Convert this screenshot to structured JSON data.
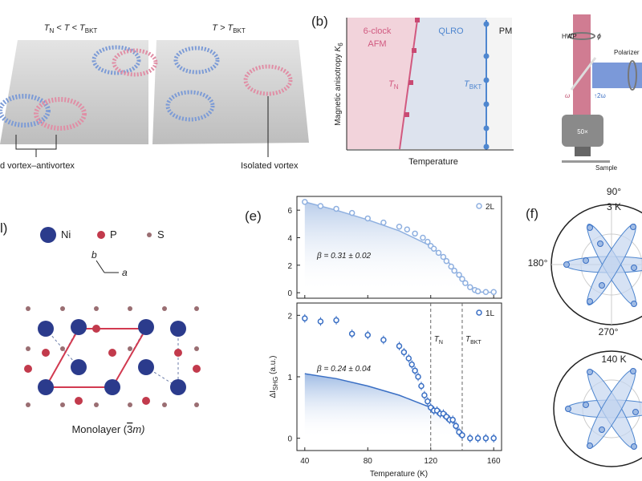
{
  "panel_a": {
    "label_left": [
      "T",
      "N",
      " < T < T",
      "BKT"
    ],
    "label_right": [
      "T > T",
      "BKT"
    ],
    "caption_left": "d vortex–antivortex",
    "caption_right": "Isolated vortex"
  },
  "panel_b": {
    "label": "(b)",
    "afm": [
      "6-clock",
      "AFM"
    ],
    "qlro": "QLRO",
    "pm": "PM",
    "tn": [
      "T",
      "N"
    ],
    "tbkt": [
      "T",
      "BKT"
    ],
    "y_label": [
      "Magnetic anisotropy ",
      "K",
      "6"
    ],
    "x_label": "Temperature"
  },
  "panel_c": {
    "hwp": "HWP",
    "phi": "ϕ",
    "polarizer": "Polarizer",
    "omega": "ω",
    "two_omega": "↑2ω",
    "objective": "50×",
    "sample": "Sample"
  },
  "panel_d": {
    "label": "l)",
    "legend": [
      "Ni",
      "P",
      "S"
    ],
    "axis_b": "b",
    "axis_a": "a",
    "caption": [
      "Monolayer (",
      "3",
      "m)"
    ]
  },
  "panel_e": {
    "label": "(e)",
    "y_label": [
      "ΔI",
      "SHG",
      " (a.u.)"
    ],
    "x_label": "Temperature (K)"
  },
  "panel_f": {
    "label": "(f)",
    "top": {
      "angle_top": "90°",
      "temp": "3 K",
      "angle_left": "180°",
      "angle_bottom": "270°"
    },
    "bottom": {
      "temp": "140 K"
    }
  },
  "chart_data": [
    {
      "type": "scatter",
      "show_xtick_labels": false,
      "series": [
        {
          "name": "2L",
          "color": "#8fb0e0",
          "x": [
            40,
            50,
            60,
            70,
            80,
            90,
            100,
            105,
            110,
            115,
            118,
            120,
            122,
            125,
            128,
            130,
            133,
            135,
            138,
            140,
            142,
            145,
            148,
            150,
            155,
            160
          ],
          "values": [
            6.6,
            6.3,
            6.1,
            5.8,
            5.4,
            5.1,
            4.8,
            4.6,
            4.3,
            4.0,
            3.7,
            3.4,
            3.2,
            2.9,
            2.6,
            2.3,
            1.9,
            1.6,
            1.3,
            1.0,
            0.7,
            0.4,
            0.2,
            0.1,
            0.05,
            0.05
          ],
          "errors": [
            0.15,
            0.15,
            0.15,
            0.15,
            0.15,
            0.15,
            0.15,
            0.15,
            0.15,
            0.15,
            0.15,
            0.15,
            0.15,
            0.15,
            0.15,
            0.15,
            0.15,
            0.15,
            0.15,
            0.15,
            0.15,
            0.15,
            0.15,
            0.15,
            0.15,
            0.15
          ]
        }
      ],
      "fit": {
        "x": [
          40,
          60,
          80,
          100,
          120,
          130,
          140,
          145,
          150,
          160
        ],
        "values": [
          6.6,
          6.0,
          5.3,
          4.5,
          3.4,
          2.4,
          1.0,
          0.4,
          0.05,
          0.02
        ]
      },
      "annotation": "β = 0.31 ± 0.02",
      "xlim": [
        35,
        165
      ],
      "xticks": [
        40,
        80,
        120,
        160
      ],
      "ylim": [
        -0.4,
        7
      ],
      "yticks": [
        0,
        2,
        4,
        6
      ]
    },
    {
      "type": "scatter",
      "show_xtick_labels": true,
      "series": [
        {
          "name": "1L",
          "color": "#3a6fc4",
          "x": [
            40,
            50,
            60,
            70,
            80,
            90,
            100,
            103,
            106,
            108,
            110,
            112,
            114,
            116,
            118,
            120,
            122,
            124,
            126,
            128,
            130,
            132,
            134,
            136,
            138,
            140,
            145,
            150,
            155,
            160
          ],
          "values": [
            1.95,
            1.9,
            1.92,
            1.7,
            1.68,
            1.6,
            1.5,
            1.4,
            1.3,
            1.2,
            1.1,
            1.0,
            0.85,
            0.7,
            0.6,
            0.5,
            0.45,
            0.45,
            0.4,
            0.4,
            0.35,
            0.3,
            0.3,
            0.2,
            0.1,
            0.05,
            0.0,
            0.0,
            0.0,
            0.0
          ],
          "errors": [
            0.07,
            0.07,
            0.07,
            0.07,
            0.07,
            0.07,
            0.07,
            0.07,
            0.07,
            0.07,
            0.07,
            0.07,
            0.07,
            0.07,
            0.07,
            0.07,
            0.07,
            0.07,
            0.07,
            0.07,
            0.07,
            0.07,
            0.07,
            0.07,
            0.07,
            0.07,
            0.07,
            0.07,
            0.07,
            0.07
          ]
        }
      ],
      "fit": {
        "x": [
          40,
          60,
          80,
          100,
          110,
          120,
          130,
          135,
          140
        ],
        "values": [
          1.05,
          0.97,
          0.85,
          0.7,
          0.6,
          0.5,
          0.35,
          0.25,
          0.0
        ]
      },
      "annotation": "β = 0.24 ± 0.04",
      "vlines": [
        {
          "x": 120,
          "label": [
            "T",
            "N"
          ]
        },
        {
          "x": 140,
          "label": [
            "T",
            "BKT"
          ]
        }
      ],
      "xlim": [
        35,
        165
      ],
      "xticks": [
        40,
        80,
        120,
        160
      ],
      "ylim": [
        -0.2,
        2.2
      ],
      "yticks": [
        0,
        1,
        2
      ]
    }
  ]
}
